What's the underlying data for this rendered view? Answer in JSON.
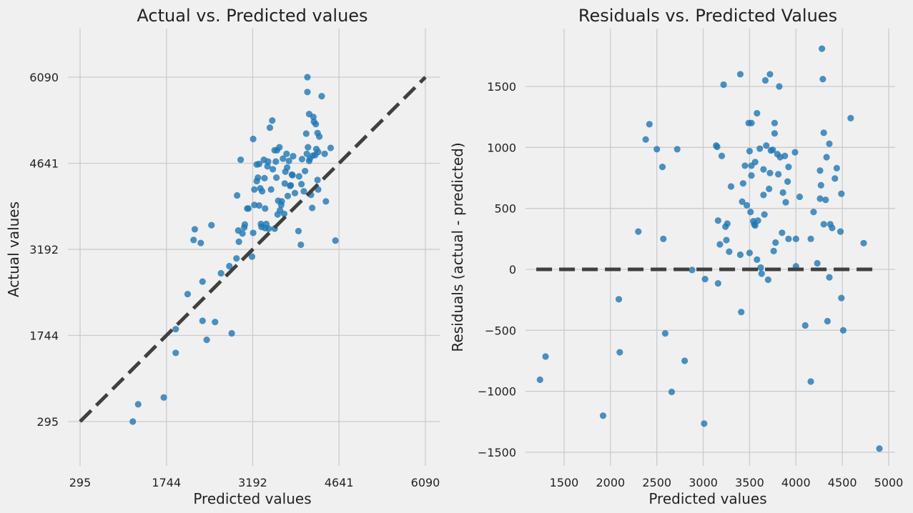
{
  "chart_data": [
    {
      "type": "scatter",
      "title": "Actual vs. Predicted values",
      "xlabel": "Predicted values",
      "ylabel": "Actual values",
      "xlim": [
        295,
        6090
      ],
      "ylim": [
        295,
        6090
      ],
      "xticks": [
        295,
        1744,
        3192,
        4641,
        6090
      ],
      "yticks": [
        295,
        1744,
        3192,
        4641,
        6090
      ],
      "reference_line": {
        "from": [
          295,
          295
        ],
        "to": [
          6090,
          6090
        ],
        "style": "dashed"
      },
      "grid": true,
      "points": [
        [
          1180,
          295
        ],
        [
          1270,
          585
        ],
        [
          1700,
          700
        ],
        [
          1900,
          1450
        ],
        [
          1900,
          1850
        ],
        [
          2100,
          2440
        ],
        [
          2200,
          3350
        ],
        [
          2220,
          3530
        ],
        [
          2320,
          3300
        ],
        [
          2350,
          2650
        ],
        [
          2350,
          1990
        ],
        [
          2420,
          1670
        ],
        [
          2500,
          3600
        ],
        [
          2560,
          1970
        ],
        [
          2660,
          2790
        ],
        [
          2800,
          2910
        ],
        [
          2840,
          1780
        ],
        [
          2920,
          3040
        ],
        [
          2930,
          4100
        ],
        [
          2950,
          3510
        ],
        [
          2960,
          3320
        ],
        [
          2990,
          4700
        ],
        [
          3020,
          3460
        ],
        [
          3050,
          3560
        ],
        [
          3060,
          3610
        ],
        [
          3100,
          3880
        ],
        [
          3120,
          3880
        ],
        [
          3180,
          3070
        ],
        [
          3200,
          5050
        ],
        [
          3200,
          3470
        ],
        [
          3220,
          4200
        ],
        [
          3220,
          3940
        ],
        [
          3260,
          4340
        ],
        [
          3260,
          4620
        ],
        [
          3280,
          4400
        ],
        [
          3300,
          4630
        ],
        [
          3300,
          3930
        ],
        [
          3320,
          4220
        ],
        [
          3330,
          3620
        ],
        [
          3340,
          3570
        ],
        [
          3350,
          4170
        ],
        [
          3380,
          4700
        ],
        [
          3390,
          4390
        ],
        [
          3400,
          3880
        ],
        [
          3400,
          3550
        ],
        [
          3420,
          3620
        ],
        [
          3440,
          4590
        ],
        [
          3450,
          4670
        ],
        [
          3460,
          3540
        ],
        [
          3480,
          5240
        ],
        [
          3500,
          4200
        ],
        [
          3520,
          5360
        ],
        [
          3530,
          4540
        ],
        [
          3560,
          4860
        ],
        [
          3560,
          3540
        ],
        [
          3580,
          4670
        ],
        [
          3590,
          4400
        ],
        [
          3600,
          4860
        ],
        [
          3610,
          3780
        ],
        [
          3620,
          4010
        ],
        [
          3640,
          4910
        ],
        [
          3650,
          3850
        ],
        [
          3670,
          3940
        ],
        [
          3680,
          4000
        ],
        [
          3700,
          4720
        ],
        [
          3720,
          3790
        ],
        [
          3730,
          4300
        ],
        [
          3740,
          4500
        ],
        [
          3760,
          4800
        ],
        [
          3770,
          4570
        ],
        [
          3780,
          4090
        ],
        [
          3800,
          4680
        ],
        [
          3820,
          4260
        ],
        [
          3830,
          4270
        ],
        [
          3850,
          4450
        ],
        [
          3860,
          4440
        ],
        [
          3870,
          4760
        ],
        [
          3900,
          4140
        ],
        [
          3960,
          3500
        ],
        [
          3970,
          4420
        ],
        [
          4000,
          3270
        ],
        [
          4010,
          4290
        ],
        [
          4020,
          4710
        ],
        [
          4050,
          4170
        ],
        [
          4070,
          4510
        ],
        [
          4090,
          5140
        ],
        [
          4100,
          4800
        ],
        [
          4110,
          6090
        ],
        [
          4110,
          5840
        ],
        [
          4120,
          4910
        ],
        [
          4140,
          4680
        ],
        [
          4140,
          5470
        ],
        [
          4150,
          4720
        ],
        [
          4170,
          4110
        ],
        [
          4190,
          3890
        ],
        [
          4200,
          4770
        ],
        [
          4210,
          5420
        ],
        [
          4220,
          5340
        ],
        [
          4240,
          4780
        ],
        [
          4250,
          5300
        ],
        [
          4260,
          4880
        ],
        [
          4280,
          5150
        ],
        [
          4280,
          4360
        ],
        [
          4290,
          4830
        ],
        [
          4290,
          4200
        ],
        [
          4310,
          5090
        ],
        [
          4350,
          5770
        ],
        [
          4400,
          4800
        ],
        [
          4420,
          4000
        ],
        [
          4500,
          4900
        ],
        [
          4580,
          3340
        ]
      ]
    },
    {
      "type": "scatter",
      "title": "Residuals vs. Predicted Values",
      "xlabel": "Predicted values",
      "ylabel": "Residuals (actual - predicted)",
      "xlim": [
        1100,
        5070
      ],
      "ylim": [
        -1650,
        1830
      ],
      "xticks": [
        1500,
        2000,
        2500,
        3000,
        3500,
        4000,
        4500,
        5000
      ],
      "yticks": [
        -1500,
        -1000,
        -500,
        0,
        500,
        1000,
        1500
      ],
      "reference_line": {
        "from": [
          1200,
          0
        ],
        "to": [
          4900,
          0
        ],
        "style": "dashed"
      },
      "grid": true,
      "points": [
        [
          1240,
          -905
        ],
        [
          1300,
          -715
        ],
        [
          1920,
          -1200
        ],
        [
          2090,
          -245
        ],
        [
          2100,
          -680
        ],
        [
          2300,
          310
        ],
        [
          2380,
          1065
        ],
        [
          2420,
          1190
        ],
        [
          2500,
          985
        ],
        [
          2560,
          840
        ],
        [
          2570,
          250
        ],
        [
          2590,
          -525
        ],
        [
          2660,
          -1005
        ],
        [
          2720,
          985
        ],
        [
          2800,
          -750
        ],
        [
          2880,
          -5
        ],
        [
          3010,
          -1265
        ],
        [
          3020,
          -80
        ],
        [
          3140,
          1015
        ],
        [
          3150,
          1005
        ],
        [
          3160,
          400
        ],
        [
          3160,
          -115
        ],
        [
          3180,
          205
        ],
        [
          3200,
          930
        ],
        [
          3220,
          1515
        ],
        [
          3240,
          350
        ],
        [
          3250,
          240
        ],
        [
          3260,
          375
        ],
        [
          3280,
          145
        ],
        [
          3300,
          680
        ],
        [
          3400,
          1600
        ],
        [
          3400,
          120
        ],
        [
          3410,
          -350
        ],
        [
          3420,
          555
        ],
        [
          3430,
          705
        ],
        [
          3450,
          850
        ],
        [
          3470,
          525
        ],
        [
          3490,
          1200
        ],
        [
          3500,
          135
        ],
        [
          3500,
          970
        ],
        [
          3510,
          470
        ],
        [
          3520,
          850
        ],
        [
          3520,
          770
        ],
        [
          3520,
          1200
        ],
        [
          3540,
          395
        ],
        [
          3550,
          370
        ],
        [
          3560,
          880
        ],
        [
          3560,
          360
        ],
        [
          3580,
          1280
        ],
        [
          3580,
          80
        ],
        [
          3590,
          400
        ],
        [
          3610,
          990
        ],
        [
          3620,
          15
        ],
        [
          3630,
          -35
        ],
        [
          3650,
          820
        ],
        [
          3650,
          610
        ],
        [
          3660,
          450
        ],
        [
          3670,
          1550
        ],
        [
          3680,
          1015
        ],
        [
          3700,
          -85
        ],
        [
          3710,
          660
        ],
        [
          3720,
          1600
        ],
        [
          3720,
          790
        ],
        [
          3730,
          975
        ],
        [
          3750,
          980
        ],
        [
          3760,
          150
        ],
        [
          3770,
          1200
        ],
        [
          3770,
          1115
        ],
        [
          3780,
          220
        ],
        [
          3800,
          945
        ],
        [
          3810,
          780
        ],
        [
          3820,
          1500
        ],
        [
          3830,
          920
        ],
        [
          3850,
          300
        ],
        [
          3860,
          630
        ],
        [
          3880,
          930
        ],
        [
          3890,
          550
        ],
        [
          3910,
          720
        ],
        [
          3920,
          250
        ],
        [
          3920,
          840
        ],
        [
          3990,
          960
        ],
        [
          4000,
          25
        ],
        [
          4000,
          250
        ],
        [
          4040,
          595
        ],
        [
          4100,
          -460
        ],
        [
          4160,
          -920
        ],
        [
          4160,
          250
        ],
        [
          4190,
          470
        ],
        [
          4230,
          50
        ],
        [
          4260,
          580
        ],
        [
          4260,
          810
        ],
        [
          4270,
          690
        ],
        [
          4280,
          1810
        ],
        [
          4290,
          1560
        ],
        [
          4300,
          1120
        ],
        [
          4300,
          370
        ],
        [
          4320,
          570
        ],
        [
          4330,
          920
        ],
        [
          4340,
          -425
        ],
        [
          4360,
          1030
        ],
        [
          4360,
          -65
        ],
        [
          4370,
          370
        ],
        [
          4390,
          340
        ],
        [
          4420,
          745
        ],
        [
          4440,
          830
        ],
        [
          4480,
          310
        ],
        [
          4490,
          620
        ],
        [
          4490,
          -235
        ],
        [
          4510,
          -500
        ],
        [
          4590,
          1240
        ],
        [
          4730,
          215
        ],
        [
          4900,
          -1470
        ]
      ]
    }
  ]
}
